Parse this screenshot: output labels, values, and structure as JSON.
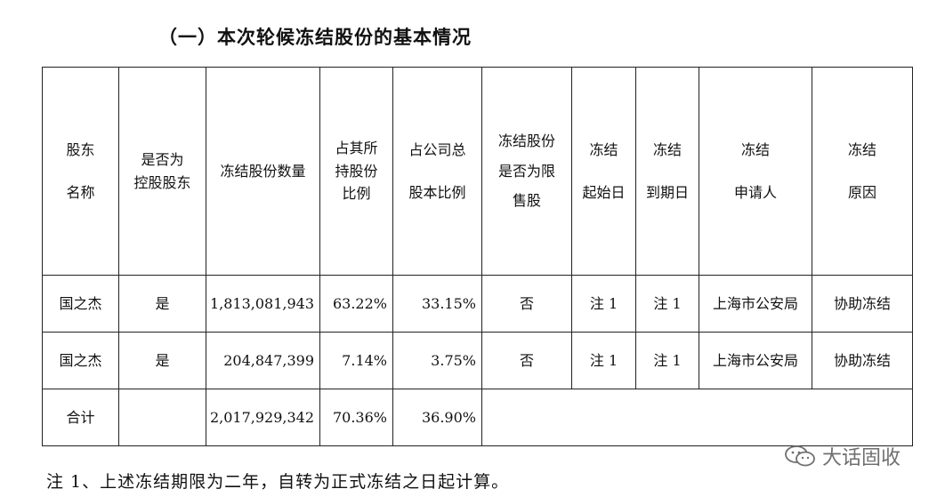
{
  "title": "（一）本次轮候冻结股份的基本情况",
  "table": {
    "headers": [
      [
        "股东",
        "名称"
      ],
      [
        "是否为",
        "控股股东"
      ],
      [
        "冻结股份数量"
      ],
      [
        "占其所",
        "持股份",
        "比例"
      ],
      [
        "占公司总",
        "股本比例"
      ],
      [
        "冻结股份",
        "是否为限",
        "售股"
      ],
      [
        "冻结",
        "起始日"
      ],
      [
        "冻结",
        "到期日"
      ],
      [
        "冻结",
        "申请人"
      ],
      [
        "冻结",
        "原因"
      ]
    ],
    "rows": [
      [
        "国之杰",
        "是",
        "1,813,081,943",
        "63.22%",
        "33.15%",
        "否",
        "注 1",
        "注 1",
        "上海市公安局",
        "协助冻结"
      ],
      [
        "国之杰",
        "是",
        "204,847,399",
        "7.14%",
        "3.75%",
        "否",
        "注 1",
        "注 1",
        "上海市公安局",
        "协助冻结"
      ]
    ],
    "total": [
      "合计",
      "",
      "2,017,929,342",
      "70.36%",
      "36.90%"
    ]
  },
  "note": "注 1、上述冻结期限为二年，自转为正式冻结之日起计算。",
  "watermark": {
    "text": "大话固收",
    "icon": "wechat-icon",
    "color": "#6f6f6f"
  }
}
